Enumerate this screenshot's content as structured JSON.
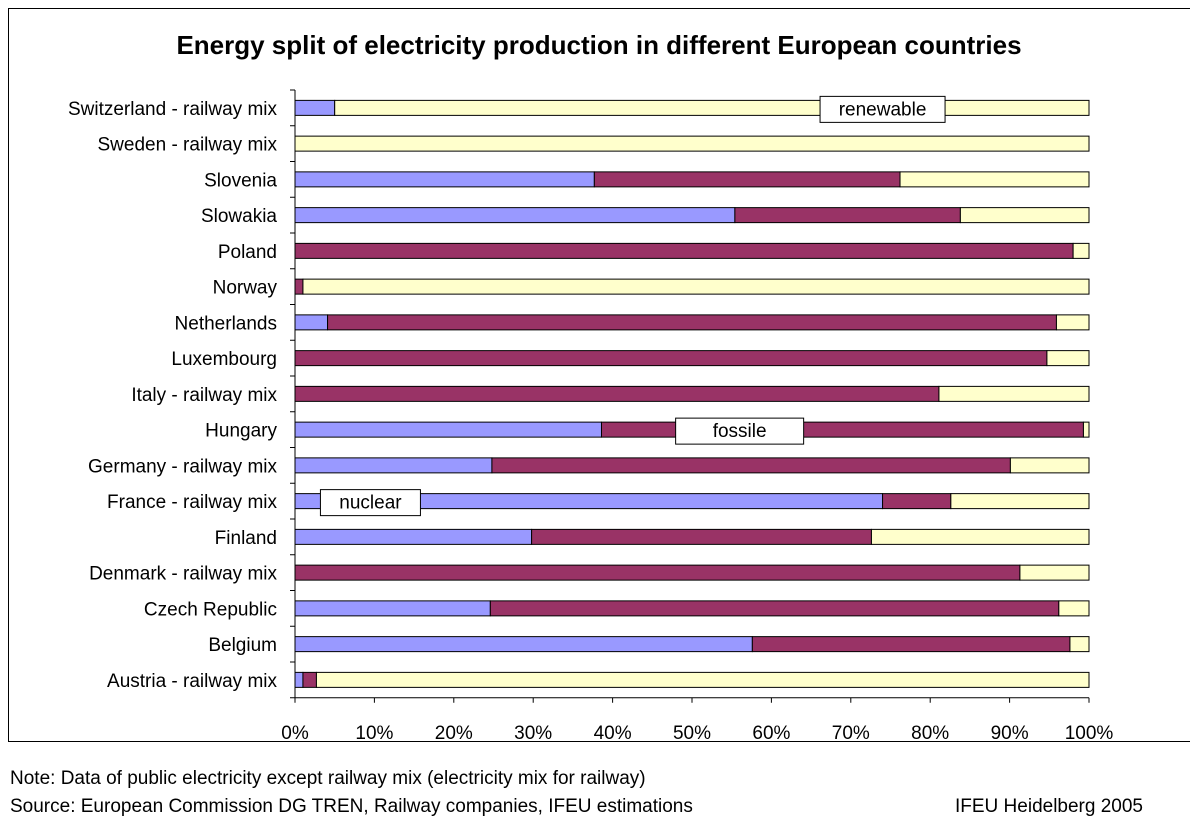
{
  "chart_data": {
    "type": "bar",
    "orientation": "horizontal",
    "stacked": "percent",
    "title": "Energy split of electricity production in different European countries",
    "categories": [
      "Switzerland - railway mix",
      "Sweden - railway mix",
      "Slovenia",
      "Slowakia",
      "Poland",
      "Norway",
      "Netherlands",
      "Luxembourg",
      "Italy - railway mix",
      "Hungary",
      "Germany - railway mix",
      "France - railway mix",
      "Finland",
      "Denmark - railway mix",
      "Czech Republic",
      "Belgium",
      "Austria - railway mix"
    ],
    "series": [
      {
        "name": "nuclear",
        "color": "#9999ff",
        "values": [
          5,
          0,
          37.7,
          55.4,
          0,
          0,
          4.1,
          0,
          0,
          38.6,
          24.8,
          74,
          29.8,
          0,
          24.6,
          57.6,
          1
        ]
      },
      {
        "name": "fossile",
        "color": "#993366",
        "values": [
          0,
          0,
          38.5,
          28.4,
          98,
          1,
          91.8,
          94.7,
          81.1,
          60.7,
          65.3,
          8.6,
          42.8,
          91.3,
          71.6,
          40,
          1.7
        ]
      },
      {
        "name": "renewable",
        "color": "#ffffcc",
        "values": [
          95,
          100,
          23.8,
          16.2,
          2,
          99,
          4.1,
          5.3,
          18.9,
          0.7,
          9.9,
          17.4,
          27.4,
          8.7,
          3.8,
          2.4,
          97.3
        ]
      }
    ],
    "series_labels_row": {
      "nuclear": "France - railway mix",
      "fossile": "Hungary",
      "renewable": "Switzerland - railway mix"
    },
    "xlim": [
      0,
      100
    ],
    "x_ticks": [
      "0%",
      "10%",
      "20%",
      "30%",
      "40%",
      "50%",
      "60%",
      "70%",
      "80%",
      "90%",
      "100%"
    ],
    "grid": false,
    "legend": "inline labels"
  },
  "notes": {
    "note": "Note: Data of public electricity except railway mix (electricity mix for railway)",
    "source": "Source: European Commission DG TREN, Railway companies, IFEU estimations",
    "credit": "IFEU Heidelberg 2005"
  }
}
